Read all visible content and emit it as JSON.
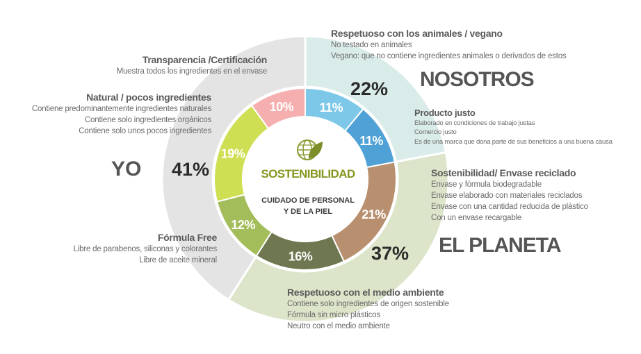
{
  "chart_data": {
    "type": "donut",
    "center": {
      "title": "SOSTENIBILIDAD",
      "subtitle_line1": "CUIDADO DE PERSONAL",
      "subtitle_line2": "Y DE LA PIEL",
      "icon": "globe-leaf-icon"
    },
    "outer_groups": [
      {
        "name": "NOSOTROS",
        "value": 22,
        "label": "22%",
        "color": "#daecea"
      },
      {
        "name": "EL PLANETA",
        "value": 37,
        "label": "37%",
        "color": "#dce5c9"
      },
      {
        "name": "YO",
        "value": 41,
        "label": "41%",
        "color": "#e4e4e4"
      }
    ],
    "inner_segments": [
      {
        "label": "11%",
        "value": 11,
        "color": "#7dc8e8"
      },
      {
        "label": "11%",
        "value": 11,
        "color": "#4fa1d6"
      },
      {
        "label": "21%",
        "value": 21,
        "color": "#b8906f"
      },
      {
        "label": "16%",
        "value": 16,
        "color": "#6f7750"
      },
      {
        "label": "12%",
        "value": 12,
        "color": "#a3bd5b"
      },
      {
        "label": "19%",
        "value": 19,
        "color": "#cfdf54"
      },
      {
        "label": "10%",
        "value": 10,
        "color": "#f6afaf"
      }
    ]
  },
  "annotations": {
    "animales": {
      "title": "Respetuoso con los animales / vegano",
      "items": [
        "No testado en animales",
        "Vegano: que no contiene ingredientes animales o derivados de estos"
      ]
    },
    "justo": {
      "title": "Producto justo",
      "items": [
        "Elaborado en condiciones de trabajo justas",
        "Comercio justo",
        "Es de una marca que dona parte de sus beneficios a una buena causa"
      ]
    },
    "envase": {
      "title": "Sostenibilidad/ Envase reciclado",
      "items": [
        "Envase y fórmula biodegradable",
        "Envase elaborado con materiales reciclados",
        "Envase con una cantidad reducida de plástico",
        "Con un envase recargable"
      ]
    },
    "medio": {
      "title": "Respetuoso con el medio ambiente",
      "items": [
        "Contiene solo ingredientes de origen sostenible",
        "Fórmula sin micro plásticos",
        "Neutro con el medio ambiente"
      ]
    },
    "formula": {
      "title": "Fórmula Free",
      "items": [
        "Libre de parabenos, siliconas y colorantes",
        "Libre de aceite mineral"
      ]
    },
    "natural": {
      "title": "Natural / pocos ingredientes",
      "items": [
        "Contiene predominantemente ingredientes naturales",
        "Contiene solo ingredientes orgánicos",
        "Contiene solo unos pocos ingredientes"
      ]
    },
    "transparencia": {
      "title": "Transparencia /Certificación",
      "items": [
        "Muestra todos los ingredientes en el envase"
      ]
    }
  }
}
